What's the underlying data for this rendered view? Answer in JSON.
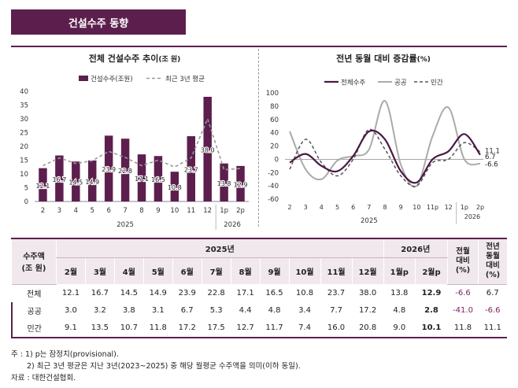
{
  "header": {
    "title": "건설수주 동향"
  },
  "colors": {
    "accent": "#5c1f4d",
    "bar": "#5c1f4d",
    "total_line": "#4a1942",
    "public_line": "#aaaaaa",
    "private_line": "#555555"
  },
  "left_panel": {
    "title_main": "전체 건설수주 추이",
    "title_unit": "(조 원)"
  },
  "right_panel": {
    "title_main": "전년 동월 대비 증감률",
    "title_unit": "(%)"
  },
  "chart_data": [
    {
      "type": "bar",
      "title": "전체 건설수주 추이(조 원)",
      "categories": [
        "2",
        "3",
        "4",
        "5",
        "6",
        "7",
        "8",
        "9",
        "10",
        "11",
        "12",
        "1p",
        "2p"
      ],
      "year_groups": [
        {
          "label": "2025",
          "from": 0,
          "to": 10
        },
        {
          "label": "2026",
          "from": 11,
          "to": 12
        }
      ],
      "series": [
        {
          "name": "건설수주(조원)",
          "values": [
            12.1,
            16.7,
            14.5,
            14.9,
            23.9,
            22.8,
            17.1,
            16.5,
            10.8,
            23.7,
            38.0,
            13.8,
            12.9
          ]
        },
        {
          "name": "최근 3년 평균",
          "values": [
            13.0,
            15.8,
            13.8,
            14.8,
            18.2,
            16.0,
            13.0,
            15.0,
            12.5,
            15.8,
            30.0,
            11.5,
            12.0
          ]
        }
      ],
      "data_labels": [
        "12.1",
        "16.7",
        "14.5",
        "14.9",
        "23.9",
        "22.8",
        "17.1",
        "16.5",
        "10.8",
        "23.7",
        "38.0",
        "13.8",
        "12.9"
      ],
      "yticks": [
        "0",
        "5",
        "10",
        "15",
        "20",
        "25",
        "30",
        "35",
        "40"
      ],
      "ylim": [
        0,
        40
      ]
    },
    {
      "type": "line",
      "title": "전년 동월 대비 증감률(%)",
      "categories": [
        "2",
        "3",
        "4",
        "5",
        "6",
        "7",
        "8",
        "9",
        "10",
        "11p",
        "12",
        "1p",
        "2p"
      ],
      "year_groups": [
        {
          "label": "2025",
          "from": 0,
          "to": 10
        },
        {
          "label": "2026",
          "from": 11,
          "to": 12
        }
      ],
      "series": [
        {
          "name": "전체수주",
          "values": [
            -5,
            8,
            -10,
            -18,
            5,
            42,
            30,
            -18,
            -35,
            0,
            12,
            38,
            6.7
          ]
        },
        {
          "name": "공공",
          "values": [
            42,
            -15,
            -30,
            -2,
            5,
            15,
            88,
            -8,
            -40,
            35,
            78,
            0,
            -6.6
          ]
        },
        {
          "name": "민간",
          "values": [
            -15,
            30,
            -5,
            -25,
            0,
            45,
            15,
            -25,
            -40,
            -5,
            0,
            25,
            11.1
          ]
        }
      ],
      "end_labels": [
        "11.1",
        "6.7",
        "-6.6"
      ],
      "yticks": [
        "-60",
        "-40",
        "-20",
        "0",
        "20",
        "40",
        "60",
        "80",
        "100"
      ],
      "ylim": [
        -60,
        100
      ]
    }
  ],
  "table": {
    "corner": [
      "수주액",
      "(조 원)"
    ],
    "year_2025": "2025년",
    "year_2026": "2026년",
    "col_yoy": [
      "전월",
      "대비",
      "(%)"
    ],
    "col_yoy2": [
      "전년",
      "동월",
      "대비",
      "(%)"
    ],
    "months": [
      "2월",
      "3월",
      "4월",
      "5월",
      "6월",
      "7월",
      "8월",
      "9월",
      "10월",
      "11월",
      "12월",
      "1월p",
      "2월p"
    ],
    "rows": [
      {
        "label": "전체",
        "values": [
          "12.1",
          "16.7",
          "14.5",
          "14.9",
          "23.9",
          "22.8",
          "17.1",
          "16.5",
          "10.8",
          "23.7",
          "38.0",
          "13.8",
          "12.9"
        ],
        "mom": "-6.6",
        "yoy": "6.7"
      },
      {
        "label": "공공",
        "values": [
          "3.0",
          "3.2",
          "3.8",
          "3.1",
          "6.7",
          "5.3",
          "4.4",
          "4.8",
          "3.4",
          "7.7",
          "17.2",
          "4.8",
          "2.8"
        ],
        "mom": "-41.0",
        "yoy": "-6.6"
      },
      {
        "label": "민간",
        "values": [
          "9.1",
          "13.5",
          "10.7",
          "11.8",
          "17.2",
          "17.5",
          "12.7",
          "11.7",
          "7.4",
          "16.0",
          "20.8",
          "9.0",
          "10.1"
        ],
        "mom": "11.8",
        "yoy": "11.1"
      }
    ]
  },
  "notes": {
    "line1": "주 : 1) p는 잠정치(provisional).",
    "line2": "2) 최근 3년 평균은 지난 3년(2023~2025) 중 해당 월평균 수주액을 의미(이하 동일).",
    "line3": "자료 : 대한건설협회."
  }
}
